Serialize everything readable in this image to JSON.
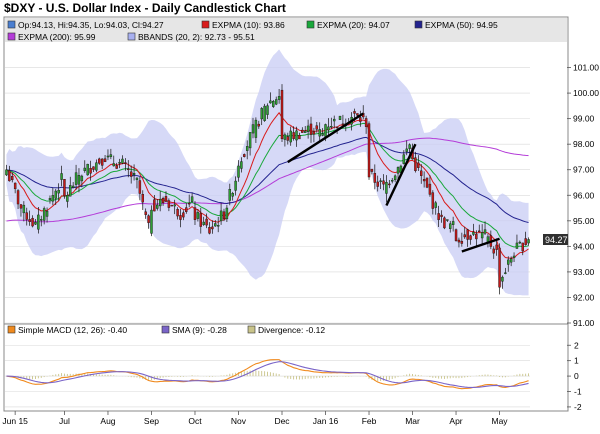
{
  "title": "$DXY - U.S. Dollar Index - Daily Candlestick Chart",
  "colors": {
    "background": "#ffffff",
    "legend_band": "#e6e6e6",
    "bollinger_fill": "#c8ccf4",
    "candle_up": "#2e9e34",
    "candle_down": "#c41a1a",
    "expma10": "#d81b1b",
    "expma20": "#19a83a",
    "expma50": "#23238f",
    "expma200": "#b43cd8",
    "trendline": "#000000",
    "macd": "#f08a1e",
    "signal": "#7a64c8",
    "divergence": "#c9c48a",
    "grid": "#d9d9d9",
    "price_tag": "#303030"
  },
  "legend": {
    "ohlc": "Op:94.13, Hi:94.35, Lo:94.03, Cl:94.27",
    "expma10": "EXPMA (10): 93.86",
    "expma20": "EXPMA (20): 94.07",
    "expma50": "EXPMA (50): 94.95",
    "expma200": "EXPMA (200): 95.99",
    "bbands": "BBANDS (20, 2): 92.73 - 95.51"
  },
  "last_price_tag": "94.27",
  "macd_legend": {
    "macd": "Simple MACD (12, 26): -0.40",
    "sma": "SMA (9): -0.28",
    "divergence": "Divergence: -0.12"
  },
  "chart_data": [
    {
      "type": "candlestick",
      "title": "$DXY - U.S. Dollar Index - Daily Candlestick Chart",
      "x_tick_labels": [
        "Jun 15",
        "Jul",
        "Aug",
        "Sep",
        "Oct",
        "Nov",
        "Dec",
        "Jan 16",
        "Feb",
        "Mar",
        "Apr",
        "May"
      ],
      "y_ticks": [
        91,
        92,
        93,
        94,
        95,
        96,
        97,
        98,
        99,
        100,
        101
      ],
      "ylim": [
        91,
        102
      ],
      "grid": true,
      "legend_position": "top",
      "last_values": {
        "open": 94.13,
        "high": 94.35,
        "low": 94.03,
        "close": 94.27
      },
      "approx_closes_by_month": [
        {
          "month": "Jun 15",
          "close": [
            97.0,
            95.5,
            94.8,
            95.8,
            96.8
          ]
        },
        {
          "month": "Jul",
          "close": [
            95.9,
            96.8,
            97.2,
            97.6
          ]
        },
        {
          "month": "Aug",
          "close": [
            97.4,
            97.2,
            96.5,
            94.2
          ]
        },
        {
          "month": "Sep",
          "close": [
            95.6,
            95.8,
            95.3,
            95.8
          ]
        },
        {
          "month": "Oct",
          "close": [
            95.2,
            94.6,
            95.3,
            97.0
          ]
        },
        {
          "month": "Nov",
          "close": [
            97.3,
            98.5,
            99.6,
            100.0
          ]
        },
        {
          "month": "Dec",
          "close": [
            98.2,
            98.4,
            98.6,
            98.3
          ]
        },
        {
          "month": "Jan 16",
          "close": [
            98.8,
            98.9,
            99.1,
            98.8
          ]
        },
        {
          "month": "Feb",
          "close": [
            96.8,
            96.3,
            97.1,
            98.2
          ]
        },
        {
          "month": "Mar",
          "close": [
            97.4,
            96.2,
            95.0,
            94.7
          ]
        },
        {
          "month": "Apr",
          "close": [
            94.3,
            94.5,
            94.4,
            93.6
          ]
        },
        {
          "month": "May",
          "close": [
            92.6,
            93.8,
            94.27
          ]
        }
      ],
      "series": [
        {
          "name": "EXPMA (10)",
          "last": 93.86
        },
        {
          "name": "EXPMA (20)",
          "last": 94.07
        },
        {
          "name": "EXPMA (50)",
          "last": 94.95
        },
        {
          "name": "EXPMA (200)",
          "last": 95.99
        },
        {
          "name": "BBANDS (20, 2)",
          "lower": 92.73,
          "upper": 95.51
        }
      ]
    },
    {
      "type": "line",
      "title": "",
      "y_ticks": [
        -2,
        -1,
        0,
        1,
        2
      ],
      "ylim": [
        -2.2,
        2.6
      ],
      "series": [
        {
          "name": "Simple MACD (12, 26)",
          "last": -0.4
        },
        {
          "name": "SMA (9)",
          "last": -0.28
        },
        {
          "name": "Divergence",
          "last": -0.12
        }
      ]
    }
  ]
}
